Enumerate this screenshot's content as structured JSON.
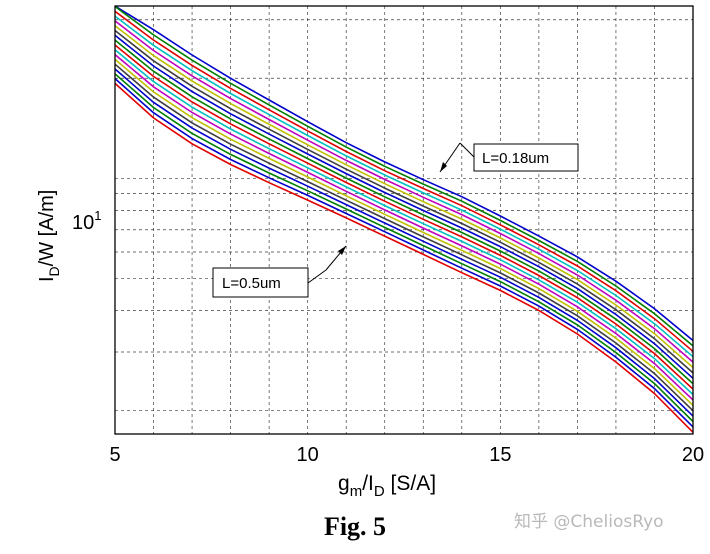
{
  "chart_data": {
    "type": "line",
    "ylabel_main": "I",
    "ylabel_sub": "D",
    "ylabel_rest": "/W [A/m]",
    "xlabel_main": "g",
    "xlabel_sub1": "m",
    "xlabel_mid": "/I",
    "xlabel_sub2": "D",
    "xlabel_rest": " [S/A]",
    "xlim": [
      5,
      20
    ],
    "ylim": [
      1.7,
      33
    ],
    "yscale": "log",
    "x_ticks": [
      "5",
      "10",
      "15",
      "20"
    ],
    "x_tick_values": [
      5,
      10,
      15,
      20
    ],
    "y_tick_base": "10",
    "y_tick_exp": "1",
    "y_tick_value": 10,
    "grid": true,
    "x": [
      5,
      6,
      7,
      8,
      9,
      10,
      11,
      12,
      13,
      14,
      15,
      16,
      17,
      18,
      19,
      20
    ],
    "series_top_values": [
      34,
      28,
      23.5,
      20,
      17.2,
      14.8,
      12.8,
      11.2,
      9.9,
      8.8,
      7.7,
      6.7,
      5.8,
      4.9,
      4.05,
      3.25
    ],
    "series_bottom_values": [
      19.3,
      15.2,
      12.7,
      11,
      9.7,
      8.6,
      7.6,
      6.7,
      5.9,
      5.2,
      4.6,
      4.0,
      3.4,
      2.8,
      2.25,
      1.72
    ],
    "series_count": 18,
    "series_colors": [
      "#0000cc",
      "#007f00",
      "#e00000",
      "#00bfbf",
      "#bf00bf",
      "#bfbf00",
      "#3f3f3f",
      "#0000cc",
      "#007f00",
      "#e00000",
      "#00bfbf",
      "#bf00bf",
      "#bfbf00",
      "#3f3f3f",
      "#0000cc",
      "#007f00",
      "#0000cc",
      "#e00000"
    ],
    "annotations": [
      {
        "text": "L=0.18um",
        "x": 13.6,
        "y": 11.6
      },
      {
        "text": "L=0.5um",
        "x": 11.1,
        "y": 8.4
      }
    ]
  },
  "caption": "Fig. 5",
  "watermark": "知乎 @CheliosRyo"
}
